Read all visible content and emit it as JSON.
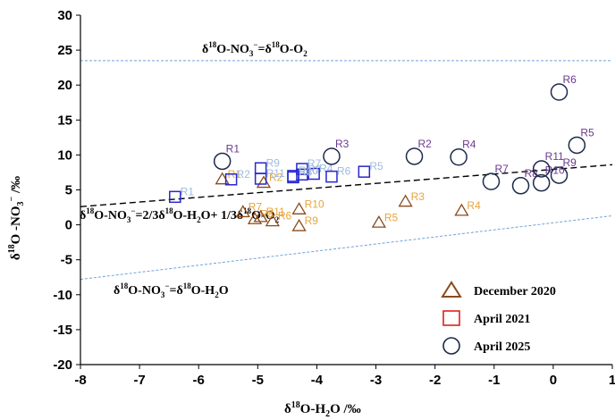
{
  "chart_data": {
    "type": "scatter",
    "xlim": [
      -8,
      1
    ],
    "ylim": [
      -20,
      30
    ],
    "x_ticks": [
      "-8",
      "-7",
      "-6",
      "-5",
      "-4",
      "-3",
      "-2",
      "-1",
      "0",
      "1"
    ],
    "y_ticks": [
      "-20",
      "-15",
      "-10",
      "-5",
      "0",
      "5",
      "10",
      "15",
      "20",
      "25",
      "30"
    ],
    "x_ticks_values": [
      -8,
      -7,
      -6,
      -5,
      -4,
      -3,
      -2,
      -1,
      0,
      1
    ],
    "y_ticks_values": [
      -20,
      -15,
      -10,
      -5,
      0,
      5,
      10,
      15,
      20,
      25,
      30
    ],
    "xlabel": {
      "sym": "δ",
      "sup": "18",
      "rest": "O-H",
      "sub": "2",
      "tail": "O   /‰"
    },
    "ylabel": "δ18O -NO3− /‰",
    "grid": false,
    "legend_position": "bottom-right",
    "colors": {
      "dec2020": "#e8a53c",
      "apr2021": "#9fbbdd",
      "apr2025": "#6b3a8f",
      "dec2020_marker": "#8b4a1a",
      "apr2021_marker": "#2727cf",
      "apr2025_marker": "#1b2a4a",
      "legend_triangle": "#8b4a1a",
      "legend_square": "#e0201a",
      "legend_circle": "#1b2a4a",
      "ref_line": "#6fa2d8"
    },
    "legend": [
      "December 2020",
      "April 2021",
      "April 2025"
    ],
    "reference_lines": [
      {
        "label": "δ18O-NO3−=δ18O-O2",
        "style": "dotted",
        "color": "#6fa2d8",
        "x": [
          -8,
          1
        ],
        "y": [
          23.5,
          23.5
        ]
      },
      {
        "label": "δ18O-NO3−=δ18O-H2O",
        "style": "dotted",
        "color": "#6fa2d8",
        "x": [
          -8,
          1
        ],
        "y": [
          -7.8,
          1.3
        ]
      },
      {
        "label": "δ18O-NO3−=2/3δ18O-H2O+ 1/3δ18O-O2",
        "style": "dashed",
        "color": "#000000",
        "x": [
          -8,
          1
        ],
        "y": [
          2.6,
          8.6
        ]
      }
    ],
    "series": [
      {
        "name": "December 2020",
        "marker": "triangle",
        "points": [
          {
            "label": "R1",
            "x": -5.6,
            "y": 6.5
          },
          {
            "label": "R2",
            "x": -4.9,
            "y": 6.0
          },
          {
            "label": "R3",
            "x": -2.5,
            "y": 3.3
          },
          {
            "label": "R4",
            "x": -1.55,
            "y": 2.0
          },
          {
            "label": "R5",
            "x": -2.95,
            "y": 0.3
          },
          {
            "label": "R6",
            "x": -4.75,
            "y": 0.5
          },
          {
            "label": "R7",
            "x": -5.25,
            "y": 1.8
          },
          {
            "label": "R8",
            "x": -5.05,
            "y": 0.8
          },
          {
            "label": "R9",
            "x": -4.3,
            "y": -0.2
          },
          {
            "label": "R10",
            "x": -4.3,
            "y": 2.2
          },
          {
            "label": "R11",
            "x": -4.95,
            "y": 1.1
          }
        ]
      },
      {
        "name": "April 2021",
        "marker": "square",
        "points": [
          {
            "label": "R1",
            "x": -6.4,
            "y": 4.0
          },
          {
            "label": "R2",
            "x": -5.45,
            "y": 6.5
          },
          {
            "label": "R3",
            "x": -4.25,
            "y": 7.2
          },
          {
            "label": "R4",
            "x": -4.05,
            "y": 7.3
          },
          {
            "label": "R5",
            "x": -3.2,
            "y": 7.6
          },
          {
            "label": "R6",
            "x": -3.75,
            "y": 6.9
          },
          {
            "label": "R7",
            "x": -4.25,
            "y": 8.0
          },
          {
            "label": "R8",
            "x": -4.4,
            "y": 6.8
          },
          {
            "label": "R9",
            "x": -4.95,
            "y": 8.1
          },
          {
            "label": "R10",
            "x": -4.4,
            "y": 7.0
          },
          {
            "label": "R11",
            "x": -4.95,
            "y": 6.6
          }
        ]
      },
      {
        "name": "April 2025",
        "marker": "circle",
        "points": [
          {
            "label": "R1",
            "x": -5.6,
            "y": 9.1
          },
          {
            "label": "R2",
            "x": -2.35,
            "y": 9.8
          },
          {
            "label": "R3",
            "x": -3.75,
            "y": 9.8
          },
          {
            "label": "R4",
            "x": -1.6,
            "y": 9.7
          },
          {
            "label": "R5",
            "x": 0.4,
            "y": 11.4
          },
          {
            "label": "R6",
            "x": 0.1,
            "y": 19.0
          },
          {
            "label": "R7",
            "x": -1.05,
            "y": 6.2
          },
          {
            "label": "R8",
            "x": -0.55,
            "y": 5.6
          },
          {
            "label": "R9",
            "x": 0.1,
            "y": 7.1
          },
          {
            "label": "R10",
            "x": -0.2,
            "y": 6.0
          },
          {
            "label": "R11",
            "x": -0.2,
            "y": 8.0
          }
        ]
      }
    ]
  }
}
